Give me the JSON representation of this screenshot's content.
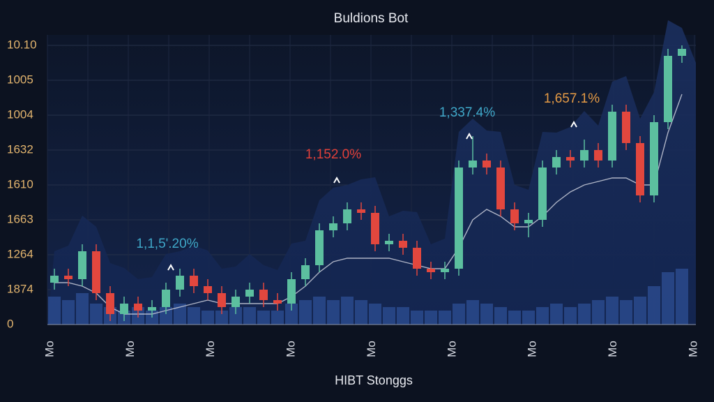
{
  "chart_data": {
    "type": "candlestick",
    "title": "Buldions Bot",
    "x_label": "HIBT Stonggs",
    "x_tick_labels": [
      "Mo",
      "Mo",
      "Mo",
      "Mo",
      "Mo",
      "Mo",
      "Mo",
      "Mo",
      "Mo"
    ],
    "ylim": [
      0,
      8
    ],
    "yticks": [
      {
        "value": 0,
        "label": "0"
      },
      {
        "value": 1,
        "label": "1874"
      },
      {
        "value": 2,
        "label": "1264"
      },
      {
        "value": 3,
        "label": "1663"
      },
      {
        "value": 4,
        "label": "1610"
      },
      {
        "value": 5,
        "label": "1632"
      },
      {
        "value": 6,
        "label": "1004"
      },
      {
        "value": 7,
        "label": "1005"
      },
      {
        "value": 8,
        "label": "10.10"
      }
    ],
    "grid": true,
    "up_color": "#5cbf9f",
    "down_color": "#e2473e",
    "open": [
      1.2,
      1.4,
      1.3,
      2.1,
      0.9,
      0.3,
      0.6,
      0.4,
      0.5,
      1.0,
      1.4,
      1.1,
      0.9,
      0.5,
      0.8,
      1.0,
      0.7,
      0.6,
      1.3,
      1.7,
      2.7,
      2.9,
      3.3,
      3.2,
      2.3,
      2.4,
      2.2,
      1.6,
      1.5,
      1.6,
      4.5,
      4.7,
      4.5,
      3.3,
      2.9,
      3.0,
      4.5,
      4.8,
      4.7,
      5.0,
      4.7,
      6.1,
      5.2,
      3.7,
      5.8,
      7.7
    ],
    "high": [
      1.6,
      1.6,
      2.3,
      2.3,
      1.1,
      0.8,
      0.8,
      0.7,
      1.2,
      1.6,
      1.6,
      1.3,
      1.1,
      1.0,
      1.2,
      1.2,
      0.9,
      1.5,
      1.9,
      2.9,
      3.1,
      3.5,
      3.5,
      3.4,
      2.6,
      2.6,
      2.4,
      1.8,
      1.8,
      4.7,
      5.4,
      4.9,
      4.7,
      3.5,
      3.2,
      4.7,
      5.0,
      5.0,
      5.3,
      5.2,
      6.3,
      6.3,
      5.4,
      6.0,
      7.9,
      8.0
    ],
    "low": [
      1.0,
      1.1,
      1.1,
      0.7,
      0.1,
      0.1,
      0.2,
      0.2,
      0.3,
      0.8,
      0.9,
      0.7,
      0.3,
      0.3,
      0.6,
      0.5,
      0.4,
      0.4,
      1.1,
      1.5,
      2.5,
      2.7,
      3.0,
      2.1,
      2.1,
      2.0,
      1.4,
      1.3,
      1.3,
      1.4,
      4.3,
      4.3,
      3.1,
      2.7,
      2.5,
      2.8,
      4.3,
      4.5,
      4.5,
      4.5,
      4.5,
      5.0,
      3.5,
      3.5,
      5.6,
      7.5
    ],
    "close": [
      1.4,
      1.3,
      2.1,
      0.9,
      0.3,
      0.6,
      0.4,
      0.5,
      1.0,
      1.4,
      1.1,
      0.9,
      0.5,
      0.8,
      1.0,
      0.7,
      0.6,
      1.3,
      1.7,
      2.7,
      2.9,
      3.3,
      3.2,
      2.3,
      2.4,
      2.2,
      1.6,
      1.5,
      1.6,
      4.5,
      4.7,
      4.5,
      3.3,
      2.9,
      3.0,
      4.5,
      4.8,
      4.7,
      5.0,
      4.7,
      6.1,
      5.2,
      3.7,
      5.8,
      7.7,
      7.9
    ],
    "volume": {
      "color": "#2d4f94",
      "values": [
        0.8,
        0.7,
        0.9,
        0.6,
        0.5,
        0.4,
        0.5,
        0.4,
        0.5,
        0.6,
        0.5,
        0.4,
        0.4,
        0.5,
        0.5,
        0.4,
        0.4,
        0.6,
        0.7,
        0.8,
        0.7,
        0.8,
        0.7,
        0.6,
        0.5,
        0.5,
        0.4,
        0.4,
        0.4,
        0.6,
        0.7,
        0.6,
        0.5,
        0.4,
        0.4,
        0.5,
        0.6,
        0.5,
        0.6,
        0.7,
        0.8,
        0.7,
        0.8,
        1.1,
        1.5,
        1.6
      ]
    },
    "moving_average": {
      "color": "#c9ccd9",
      "values": [
        1.2,
        1.2,
        1.1,
        0.9,
        0.5,
        0.3,
        0.3,
        0.3,
        0.4,
        0.5,
        0.6,
        0.7,
        0.6,
        0.6,
        0.6,
        0.6,
        0.6,
        0.8,
        1.1,
        1.5,
        1.8,
        1.9,
        1.9,
        1.9,
        1.9,
        1.8,
        1.7,
        1.6,
        1.6,
        2.2,
        3.0,
        3.3,
        3.1,
        2.8,
        2.8,
        3.1,
        3.5,
        3.8,
        4.0,
        4.1,
        4.2,
        4.2,
        4.0,
        4.0,
        5.5,
        6.6
      ]
    },
    "annotations": [
      {
        "text": "1,1,5'.20%",
        "color": "#3fa8c9"
      },
      {
        "text": "1,152.0%",
        "color": "#e2403a"
      },
      {
        "text": "1,337.4%",
        "color": "#3fa8c9"
      },
      {
        "text": "1,657.1%",
        "color": "#e49a45"
      }
    ]
  }
}
